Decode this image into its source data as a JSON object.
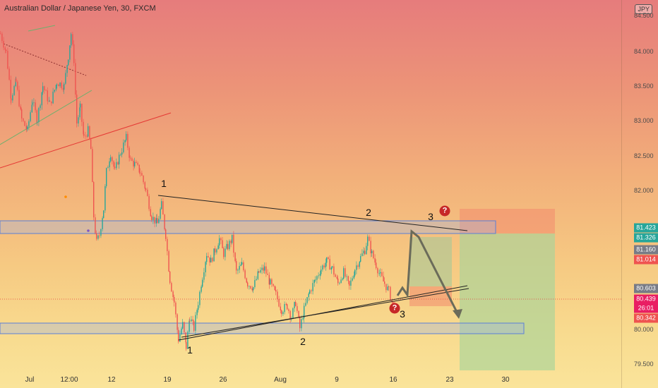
{
  "header": {
    "title": "Australian Dollar / Japanese Yen, 30, FXCM",
    "currency_badge": "JPY"
  },
  "price_axis": {
    "ticks": [
      "84.500",
      "84.000",
      "83.500",
      "83.000",
      "82.500",
      "82.000",
      "80.000",
      "79.500"
    ]
  },
  "date_axis": {
    "ticks": [
      "Jul",
      "12:00",
      "12",
      "19",
      "26",
      "Aug",
      "9",
      "16",
      "23",
      "30"
    ]
  },
  "price_labels": [
    {
      "text": "81.423",
      "color": "#26A69A"
    },
    {
      "text": "81.326",
      "color": "#26A69A"
    },
    {
      "text": "81.160",
      "color": "#787B86"
    },
    {
      "text": "81.014",
      "color": "#EF5350"
    },
    {
      "text": "80.603",
      "color": "#787B86"
    },
    {
      "text": "80.439",
      "color": "#E91E63"
    },
    {
      "text": "26:01",
      "color": "#E91E63"
    },
    {
      "text": "80.342",
      "color": "#EF5350"
    }
  ],
  "annotations": {
    "wave_1_top": "1",
    "wave_2_top": "2",
    "wave_3_top": "3",
    "wave_1_bottom": "1",
    "wave_2_bottom": "2",
    "wave_3_bottom": "3",
    "question_mark": "?"
  },
  "colors": {
    "bull": "#26A69A",
    "bear": "#EF5350",
    "zone_border": "#5B7FD6",
    "trend_line": "#222222"
  },
  "chart_data": {
    "type": "candlestick",
    "title": "Australian Dollar / Japanese Yen, 30, FXCM",
    "ylim": [
      79.4,
      84.6
    ],
    "price_path": [
      [
        0,
        84.15
      ],
      [
        8,
        83.9
      ],
      [
        15,
        83.3
      ],
      [
        22,
        83.5
      ],
      [
        30,
        83.0
      ],
      [
        38,
        82.85
      ],
      [
        45,
        83.25
      ],
      [
        52,
        83.0
      ],
      [
        60,
        83.45
      ],
      [
        70,
        83.2
      ],
      [
        80,
        83.5
      ],
      [
        90,
        83.45
      ],
      [
        96,
        83.85
      ],
      [
        100,
        84.15
      ],
      [
        104,
        83.8
      ],
      [
        108,
        82.95
      ],
      [
        113,
        83.15
      ],
      [
        118,
        82.75
      ],
      [
        124,
        82.85
      ],
      [
        128,
        82.6
      ],
      [
        132,
        81.7
      ],
      [
        136,
        81.35
      ],
      [
        140,
        81.45
      ],
      [
        146,
        81.8
      ],
      [
        150,
        82.3
      ],
      [
        156,
        82.55
      ],
      [
        162,
        82.3
      ],
      [
        168,
        82.5
      ],
      [
        172,
        82.6
      ],
      [
        178,
        82.75
      ],
      [
        184,
        82.45
      ],
      [
        190,
        82.4
      ],
      [
        198,
        82.3
      ],
      [
        206,
        82.05
      ],
      [
        214,
        81.7
      ],
      [
        222,
        81.6
      ],
      [
        228,
        81.85
      ],
      [
        234,
        81.45
      ],
      [
        240,
        80.85
      ],
      [
        246,
        80.55
      ],
      [
        252,
        80.05
      ],
      [
        258,
        80.25
      ],
      [
        263,
        79.95
      ],
      [
        268,
        80.35
      ],
      [
        274,
        80.2
      ],
      [
        280,
        80.55
      ],
      [
        286,
        80.9
      ],
      [
        292,
        81.2
      ],
      [
        298,
        81.1
      ],
      [
        304,
        81.25
      ],
      [
        310,
        81.4
      ],
      [
        316,
        81.2
      ],
      [
        322,
        81.3
      ],
      [
        328,
        81.4
      ],
      [
        334,
        80.95
      ],
      [
        342,
        81.05
      ],
      [
        350,
        80.8
      ],
      [
        358,
        80.75
      ],
      [
        366,
        80.95
      ],
      [
        374,
        81.0
      ],
      [
        382,
        80.8
      ],
      [
        390,
        80.65
      ],
      [
        398,
        80.45
      ],
      [
        406,
        80.5
      ],
      [
        412,
        80.35
      ],
      [
        418,
        80.55
      ],
      [
        424,
        80.2
      ],
      [
        430,
        80.45
      ],
      [
        438,
        80.7
      ],
      [
        446,
        80.85
      ],
      [
        454,
        81.0
      ],
      [
        462,
        81.1
      ],
      [
        470,
        81.0
      ],
      [
        478,
        80.8
      ],
      [
        486,
        80.95
      ],
      [
        494,
        80.75
      ],
      [
        502,
        81.0
      ],
      [
        510,
        81.15
      ],
      [
        516,
        81.25
      ],
      [
        520,
        81.4
      ],
      [
        526,
        81.2
      ],
      [
        532,
        81.05
      ],
      [
        538,
        80.9
      ],
      [
        544,
        80.8
      ],
      [
        550,
        80.7
      ],
      [
        556,
        80.5
      ],
      [
        560,
        80.45
      ]
    ],
    "levels": {
      "resistance_zone": [
        81.326,
        81.423
      ],
      "support_zone": [
        80.0,
        80.1
      ],
      "current_price": 80.439
    }
  }
}
